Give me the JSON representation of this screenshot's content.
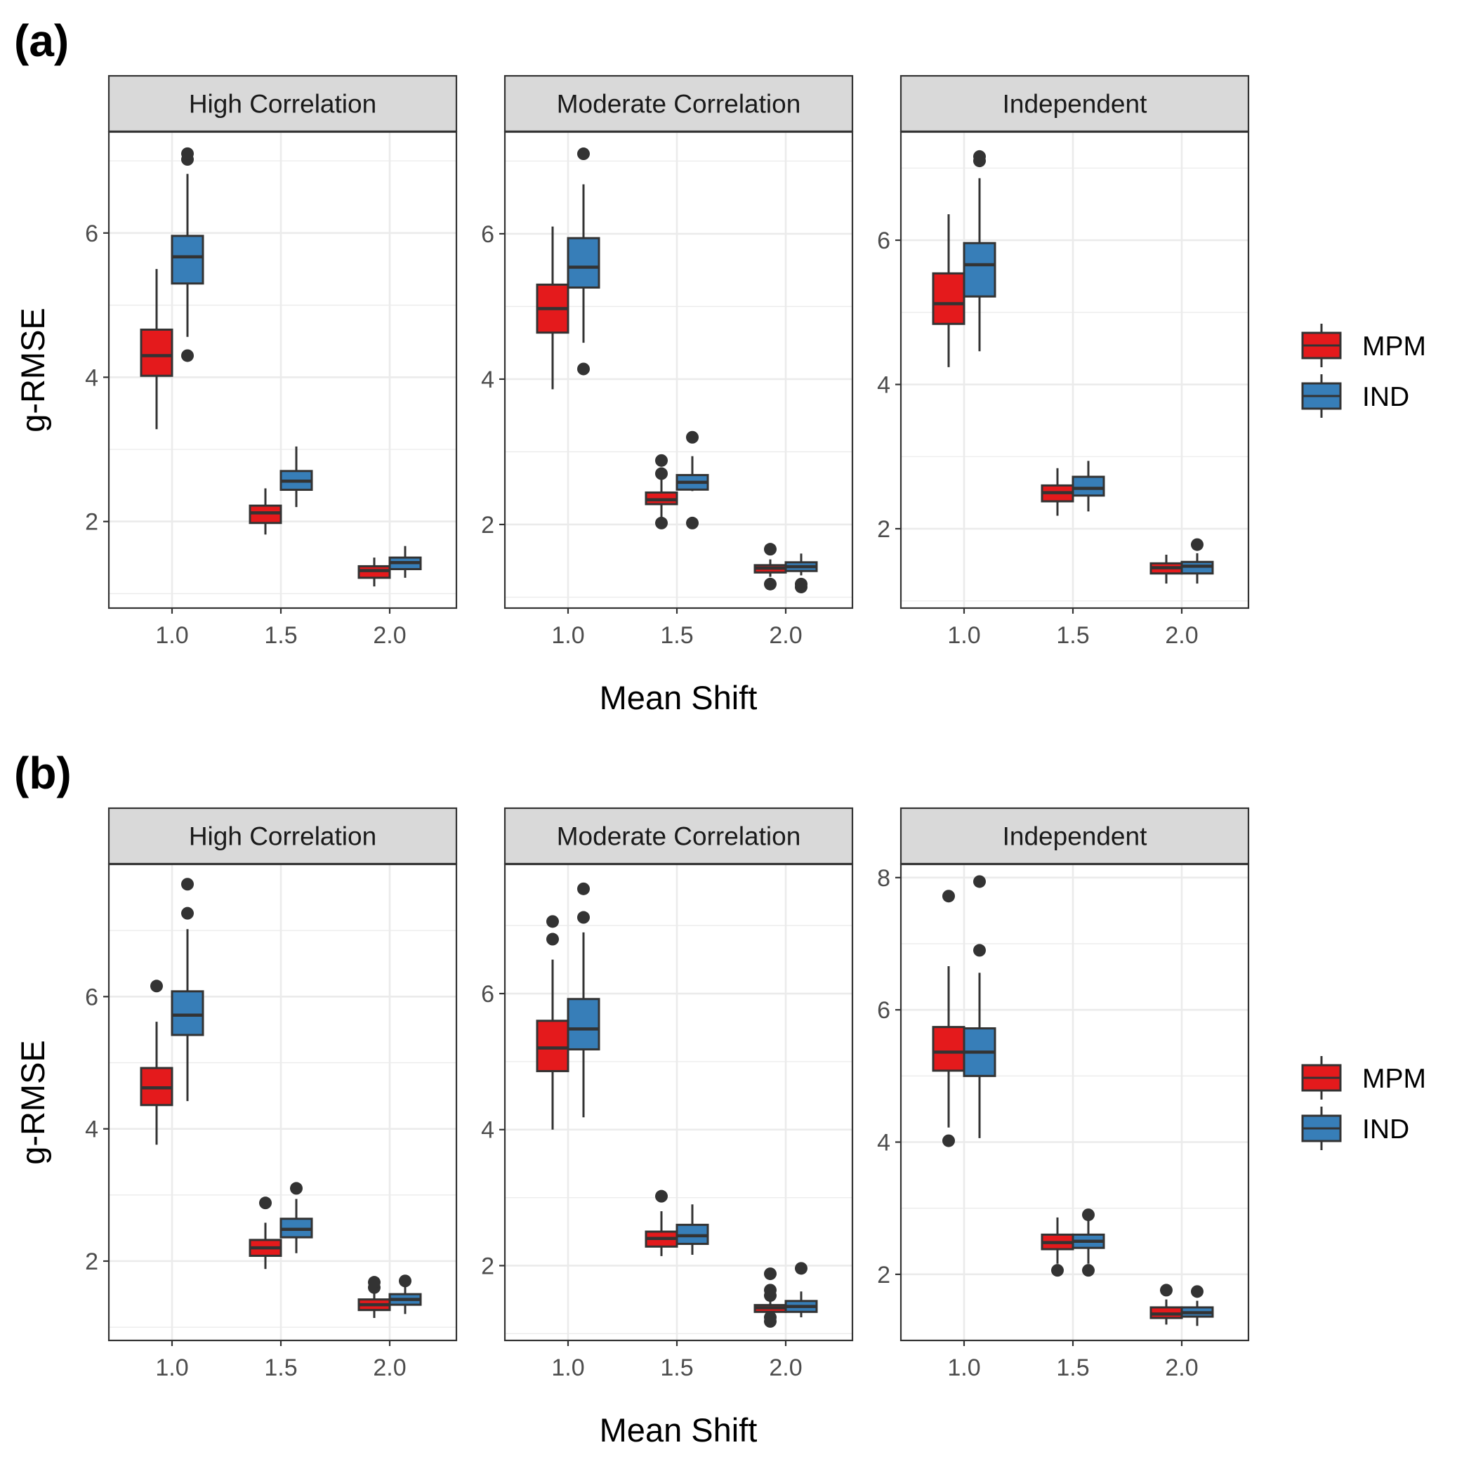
{
  "colors": {
    "MPM": "#E41A1C",
    "IND": "#377EB8",
    "outline": "#333333",
    "strip_fill": "#D9D9D9",
    "grid": "#EBEBEB"
  },
  "chart_data": [
    {
      "label": "(a)",
      "type": "box",
      "xlabel": "Mean Shift",
      "ylabel": "g-RMSE",
      "legend": [
        "MPM",
        "IND"
      ],
      "categories": [
        "1.0",
        "1.5",
        "2.0"
      ],
      "facets": [
        {
          "title": "High Correlation",
          "ylim": [
            0.8,
            7.4
          ],
          "yticks": [
            2,
            4,
            6
          ],
          "boxes": [
            {
              "x": "1.0",
              "group": "MPM",
              "lower": 3.28,
              "q1": 4.02,
              "median": 4.3,
              "q3": 4.66,
              "upper": 5.5,
              "outliers": []
            },
            {
              "x": "1.0",
              "group": "IND",
              "lower": 4.56,
              "q1": 5.3,
              "median": 5.67,
              "q3": 5.96,
              "upper": 6.82,
              "outliers": [
                4.3,
                7.02,
                7.1
              ]
            },
            {
              "x": "1.5",
              "group": "MPM",
              "lower": 1.82,
              "q1": 1.98,
              "median": 2.12,
              "q3": 2.22,
              "upper": 2.46,
              "outliers": []
            },
            {
              "x": "1.5",
              "group": "IND",
              "lower": 2.2,
              "q1": 2.44,
              "median": 2.56,
              "q3": 2.7,
              "upper": 3.04,
              "outliers": []
            },
            {
              "x": "2.0",
              "group": "MPM",
              "lower": 1.1,
              "q1": 1.22,
              "median": 1.32,
              "q3": 1.38,
              "upper": 1.5,
              "outliers": []
            },
            {
              "x": "2.0",
              "group": "IND",
              "lower": 1.22,
              "q1": 1.34,
              "median": 1.43,
              "q3": 1.5,
              "upper": 1.66,
              "outliers": []
            }
          ]
        },
        {
          "title": "Moderate Correlation",
          "ylim": [
            0.85,
            7.4
          ],
          "yticks": [
            2,
            4,
            6
          ],
          "boxes": [
            {
              "x": "1.0",
              "group": "MPM",
              "lower": 3.86,
              "q1": 4.64,
              "median": 4.97,
              "q3": 5.3,
              "upper": 6.1,
              "outliers": []
            },
            {
              "x": "1.0",
              "group": "IND",
              "lower": 4.5,
              "q1": 5.26,
              "median": 5.54,
              "q3": 5.94,
              "upper": 6.68,
              "outliers": [
                4.14,
                7.1
              ]
            },
            {
              "x": "1.5",
              "group": "MPM",
              "lower": 2.04,
              "q1": 2.28,
              "median": 2.34,
              "q3": 2.44,
              "upper": 2.62,
              "outliers": [
                2.02,
                2.7,
                2.88
              ]
            },
            {
              "x": "1.5",
              "group": "IND",
              "lower": 2.46,
              "q1": 2.48,
              "median": 2.58,
              "q3": 2.68,
              "upper": 2.94,
              "outliers": [
                2.02,
                3.2
              ]
            },
            {
              "x": "2.0",
              "group": "MPM",
              "lower": 1.28,
              "q1": 1.34,
              "median": 1.4,
              "q3": 1.44,
              "upper": 1.52,
              "outliers": [
                1.18,
                1.66
              ]
            },
            {
              "x": "2.0",
              "group": "IND",
              "lower": 1.3,
              "q1": 1.36,
              "median": 1.42,
              "q3": 1.48,
              "upper": 1.6,
              "outliers": [
                1.14,
                1.18
              ]
            }
          ]
        },
        {
          "title": "Independent",
          "ylim": [
            0.9,
            7.5
          ],
          "yticks": [
            2,
            4,
            6
          ],
          "boxes": [
            {
              "x": "1.0",
              "group": "MPM",
              "lower": 4.24,
              "q1": 4.84,
              "median": 5.12,
              "q3": 5.54,
              "upper": 6.36,
              "outliers": []
            },
            {
              "x": "1.0",
              "group": "IND",
              "lower": 4.46,
              "q1": 5.22,
              "median": 5.66,
              "q3": 5.96,
              "upper": 6.86,
              "outliers": [
                7.1,
                7.16
              ]
            },
            {
              "x": "1.5",
              "group": "MPM",
              "lower": 2.18,
              "q1": 2.38,
              "median": 2.5,
              "q3": 2.6,
              "upper": 2.84,
              "outliers": []
            },
            {
              "x": "1.5",
              "group": "IND",
              "lower": 2.24,
              "q1": 2.46,
              "median": 2.56,
              "q3": 2.72,
              "upper": 2.94,
              "outliers": []
            },
            {
              "x": "2.0",
              "group": "MPM",
              "lower": 1.24,
              "q1": 1.38,
              "median": 1.46,
              "q3": 1.52,
              "upper": 1.64,
              "outliers": []
            },
            {
              "x": "2.0",
              "group": "IND",
              "lower": 1.24,
              "q1": 1.38,
              "median": 1.48,
              "q3": 1.54,
              "upper": 1.66,
              "outliers": [
                1.78
              ]
            }
          ]
        }
      ]
    },
    {
      "label": "(b)",
      "type": "box",
      "xlabel": "Mean Shift",
      "ylabel": "g-RMSE",
      "legend": [
        "MPM",
        "IND"
      ],
      "categories": [
        "1.0",
        "1.5",
        "2.0"
      ],
      "facets": [
        {
          "title": "High Correlation",
          "ylim": [
            0.8,
            8.0
          ],
          "yticks": [
            2,
            4,
            6
          ],
          "boxes": [
            {
              "x": "1.0",
              "group": "MPM",
              "lower": 3.76,
              "q1": 4.36,
              "median": 4.62,
              "q3": 4.92,
              "upper": 5.62,
              "outliers": [
                6.16
              ]
            },
            {
              "x": "1.0",
              "group": "IND",
              "lower": 4.42,
              "q1": 5.42,
              "median": 5.72,
              "q3": 6.08,
              "upper": 7.02,
              "outliers": [
                7.26,
                7.7
              ]
            },
            {
              "x": "1.5",
              "group": "MPM",
              "lower": 1.88,
              "q1": 2.08,
              "median": 2.2,
              "q3": 2.32,
              "upper": 2.58,
              "outliers": [
                2.88
              ]
            },
            {
              "x": "1.5",
              "group": "IND",
              "lower": 2.12,
              "q1": 2.36,
              "median": 2.48,
              "q3": 2.64,
              "upper": 2.94,
              "outliers": [
                3.1
              ]
            },
            {
              "x": "2.0",
              "group": "MPM",
              "lower": 1.14,
              "q1": 1.26,
              "median": 1.34,
              "q3": 1.42,
              "upper": 1.54,
              "outliers": [
                1.6,
                1.68
              ]
            },
            {
              "x": "2.0",
              "group": "IND",
              "lower": 1.2,
              "q1": 1.34,
              "median": 1.42,
              "q3": 1.5,
              "upper": 1.62,
              "outliers": [
                1.7
              ]
            }
          ]
        },
        {
          "title": "Moderate Correlation",
          "ylim": [
            0.9,
            7.9
          ],
          "yticks": [
            2,
            4,
            6
          ],
          "boxes": [
            {
              "x": "1.0",
              "group": "MPM",
              "lower": 4.0,
              "q1": 4.86,
              "median": 5.2,
              "q3": 5.6,
              "upper": 6.5,
              "outliers": [
                6.8,
                7.06
              ]
            },
            {
              "x": "1.0",
              "group": "IND",
              "lower": 4.18,
              "q1": 5.18,
              "median": 5.48,
              "q3": 5.92,
              "upper": 6.9,
              "outliers": [
                7.12,
                7.54
              ]
            },
            {
              "x": "1.5",
              "group": "MPM",
              "lower": 2.14,
              "q1": 2.28,
              "median": 2.4,
              "q3": 2.5,
              "upper": 2.8,
              "outliers": [
                3.02
              ]
            },
            {
              "x": "1.5",
              "group": "IND",
              "lower": 2.16,
              "q1": 2.32,
              "median": 2.44,
              "q3": 2.6,
              "upper": 2.9,
              "outliers": []
            },
            {
              "x": "2.0",
              "group": "MPM",
              "lower": 1.26,
              "q1": 1.32,
              "median": 1.38,
              "q3": 1.42,
              "upper": 1.5,
              "outliers": [
                1.18,
                1.24,
                1.56,
                1.64,
                1.88
              ]
            },
            {
              "x": "2.0",
              "group": "IND",
              "lower": 1.24,
              "q1": 1.32,
              "median": 1.4,
              "q3": 1.48,
              "upper": 1.62,
              "outliers": [
                1.96
              ]
            }
          ]
        },
        {
          "title": "Independent",
          "ylim": [
            1.0,
            8.2
          ],
          "yticks": [
            2,
            4,
            6,
            8
          ],
          "boxes": [
            {
              "x": "1.0",
              "group": "MPM",
              "lower": 4.22,
              "q1": 5.08,
              "median": 5.36,
              "q3": 5.74,
              "upper": 6.66,
              "outliers": [
                4.02,
                7.72
              ]
            },
            {
              "x": "1.0",
              "group": "IND",
              "lower": 4.06,
              "q1": 5.0,
              "median": 5.36,
              "q3": 5.72,
              "upper": 6.56,
              "outliers": [
                6.9,
                7.94
              ]
            },
            {
              "x": "1.5",
              "group": "MPM",
              "lower": 2.16,
              "q1": 2.38,
              "median": 2.48,
              "q3": 2.6,
              "upper": 2.86,
              "outliers": [
                2.06
              ]
            },
            {
              "x": "1.5",
              "group": "IND",
              "lower": 2.16,
              "q1": 2.4,
              "median": 2.5,
              "q3": 2.6,
              "upper": 2.84,
              "outliers": [
                2.06,
                2.9
              ]
            },
            {
              "x": "2.0",
              "group": "MPM",
              "lower": 1.24,
              "q1": 1.34,
              "median": 1.4,
              "q3": 1.5,
              "upper": 1.62,
              "outliers": [
                1.76
              ]
            },
            {
              "x": "2.0",
              "group": "IND",
              "lower": 1.22,
              "q1": 1.36,
              "median": 1.42,
              "q3": 1.5,
              "upper": 1.6,
              "outliers": [
                1.74
              ]
            }
          ]
        }
      ]
    }
  ]
}
